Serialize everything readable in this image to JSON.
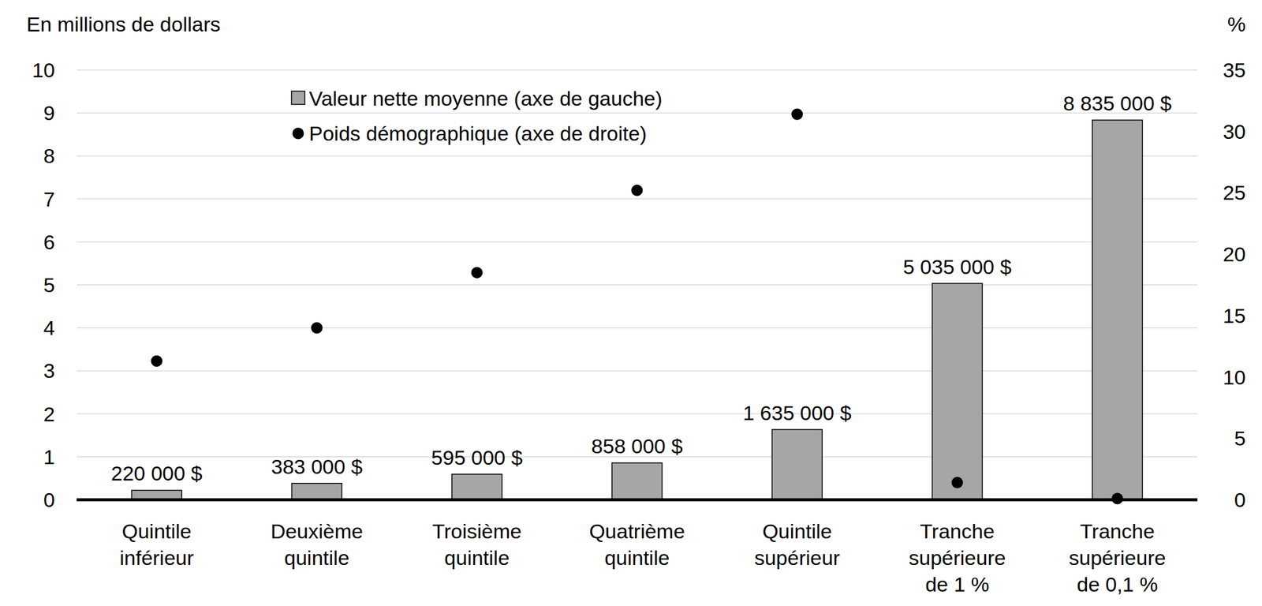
{
  "chart_data": {
    "type": "bar",
    "y_label": "En millions de dollars",
    "y2_label": "%",
    "categories": [
      "Quintile\ninférieur",
      "Deuxième\nquintile",
      "Troisième\nquintile",
      "Quatrième\nquintile",
      "Quintile\nsupérieur",
      "Tranche\nsupérieure\nde 1 %",
      "Tranche\nsupérieure\nde 0,1 %"
    ],
    "series": [
      {
        "name": "Valeur nette moyenne (axe de gauche)",
        "type": "bar",
        "axis": "y",
        "color": "#a6a6a6",
        "values": [
          0.22,
          0.383,
          0.595,
          0.858,
          1.635,
          5.035,
          8.835
        ],
        "value_labels": [
          "220 000 $",
          "383 000 $",
          "595 000 $",
          "858 000 $",
          "1 635 000 $",
          "5 035 000 $",
          "8 835 000 $"
        ]
      },
      {
        "name": "Poids démographique (axe de droite)",
        "type": "scatter",
        "axis": "y2",
        "color": "#000000",
        "marker": "circle",
        "values": [
          11.3,
          14.0,
          18.5,
          25.2,
          31.4,
          1.4,
          0.1
        ]
      }
    ],
    "ylim": [
      0,
      10
    ],
    "yticks": [
      0,
      1,
      2,
      3,
      4,
      5,
      6,
      7,
      8,
      9,
      10
    ],
    "y2lim": [
      0,
      35
    ],
    "y2ticks": [
      0,
      5,
      10,
      15,
      20,
      25,
      30,
      35
    ],
    "grid": true,
    "legend": "top",
    "data_labels": true
  }
}
